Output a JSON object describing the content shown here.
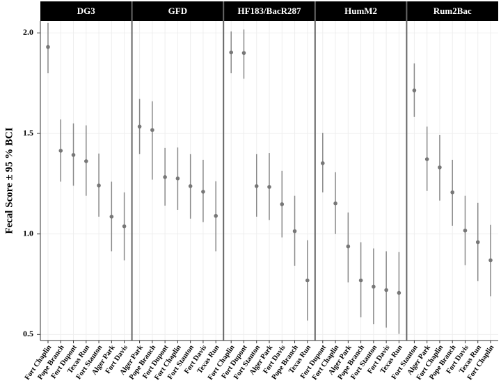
{
  "chart_data": {
    "type": "errorbar",
    "y_label": "Fecal Score ± 95 % BCI",
    "ylim": [
      0.47,
      2.06
    ],
    "yticks": [
      {
        "value": 0.5,
        "label": "0.5"
      },
      {
        "value": 1,
        "label": "1.0"
      },
      1.5,
      {
        "value": 2,
        "label": "2.0"
      }
    ],
    "grid": true,
    "color": "#777777",
    "panels": [
      {
        "title": "DG3",
        "categories": [
          "Fort Chaplin",
          "Pope Branch",
          "Fort Dupont",
          "Texas Run",
          "Fort Stanton",
          "Alger Park",
          "Fort Davis"
        ],
        "values": [
          1.93,
          1.414,
          1.393,
          1.362,
          1.241,
          1.086,
          1.038
        ],
        "lower": [
          1.8,
          1.26,
          1.24,
          1.19,
          1.086,
          0.914,
          0.869
        ],
        "upper": [
          2.05,
          1.57,
          1.55,
          1.54,
          1.4,
          1.26,
          1.207
        ]
      },
      {
        "title": "GFD",
        "categories": [
          "Alger Park",
          "Pope Branch",
          "Fort Dupont",
          "Fort Chaplin",
          "Fort Stanton",
          "Fort Davis",
          "Texas Run"
        ],
        "values": [
          1.534,
          1.517,
          1.283,
          1.276,
          1.238,
          1.21,
          1.09
        ],
        "lower": [
          1.397,
          1.27,
          1.141,
          1.12,
          1.076,
          1.059,
          0.914
        ],
        "upper": [
          1.672,
          1.66,
          1.428,
          1.43,
          1.397,
          1.369,
          1.262
        ]
      },
      {
        "title": "HF183/BacR287",
        "categories": [
          "Fort Chaplin",
          "Fort Dupont",
          "Fort Stanton",
          "Alger Park",
          "Fort Davis",
          "Pope Branch",
          "Texas Run"
        ],
        "values": [
          1.903,
          1.9,
          1.238,
          1.234,
          1.148,
          1.014,
          0.769
        ],
        "lower": [
          1.8,
          1.772,
          1.086,
          1.069,
          0.983,
          0.841,
          0.569
        ],
        "upper": [
          2.007,
          2.017,
          1.397,
          1.403,
          1.314,
          1.19,
          0.969
        ]
      },
      {
        "title": "HumM2",
        "categories": [
          "Fort Dupont",
          "Fort Chaplin",
          "Alger Park",
          "Pope Branch",
          "Fort Stanton",
          "Fort Davis",
          "Texas Run"
        ],
        "values": [
          1.352,
          1.152,
          0.938,
          0.769,
          0.738,
          0.721,
          0.707
        ],
        "lower": [
          1.207,
          1.0,
          0.759,
          0.586,
          0.552,
          0.534,
          0.503
        ],
        "upper": [
          1.503,
          1.307,
          1.107,
          0.959,
          0.928,
          0.914,
          0.91
        ]
      },
      {
        "title": "Rum2Bac",
        "categories": [
          "Fort Stanton",
          "Alger Park",
          "Fort Chaplin",
          "Pope Branch",
          "Fort Davis",
          "Texas Run",
          "Fort Chaplin"
        ],
        "values": [
          1.714,
          1.372,
          1.331,
          1.207,
          1.017,
          0.959,
          0.869
        ],
        "lower": [
          1.583,
          1.214,
          1.166,
          1.041,
          0.845,
          0.766,
          0.69
        ],
        "upper": [
          1.848,
          1.534,
          1.493,
          1.369,
          1.19,
          1.155,
          1.045
        ]
      }
    ]
  }
}
